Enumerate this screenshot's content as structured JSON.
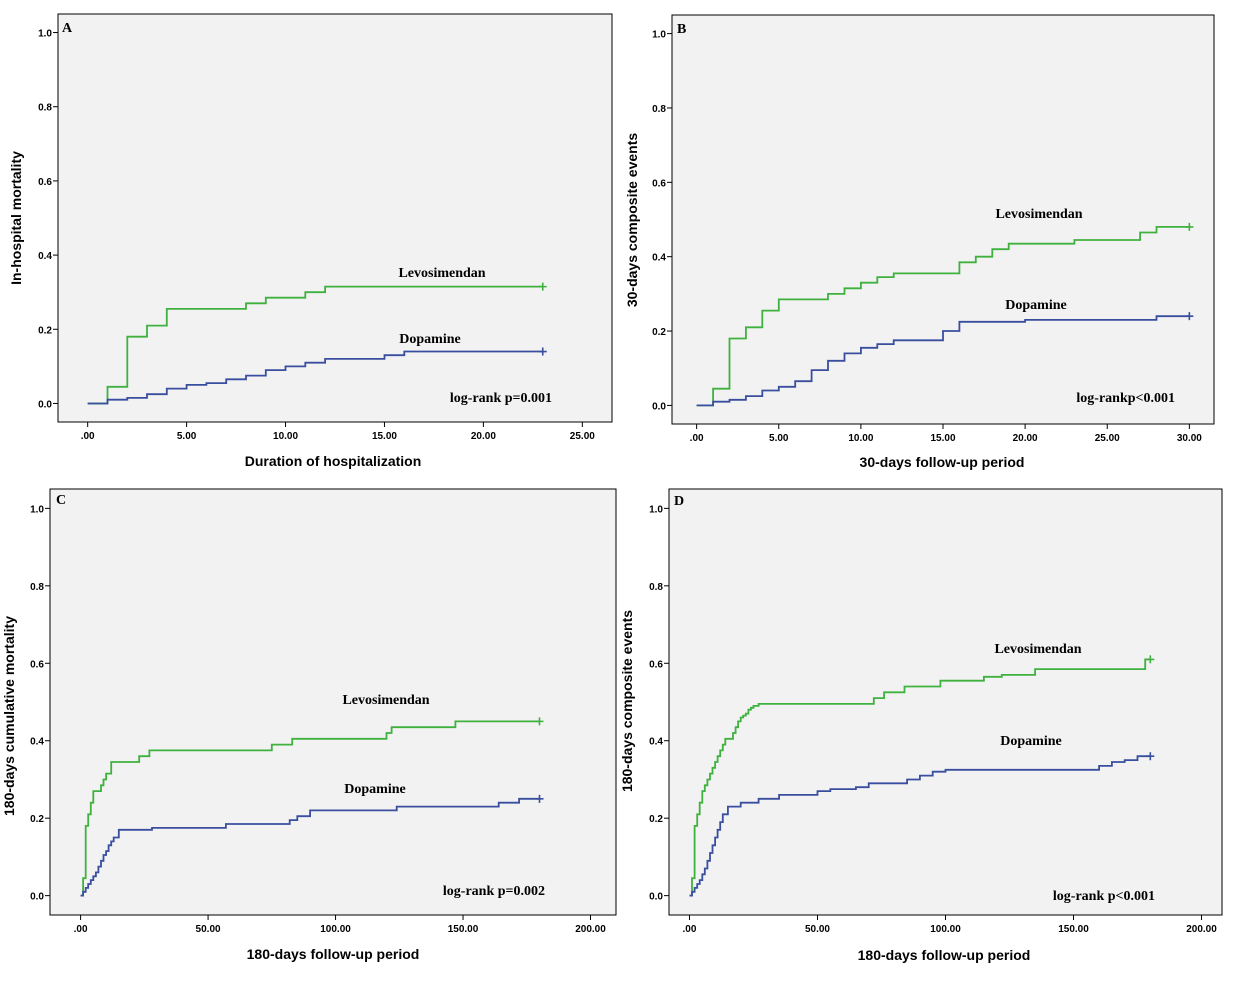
{
  "colors": {
    "Levosimendan": "#3fb13f",
    "Dopamine": "#3a4ea0"
  },
  "chart_data": [
    {
      "type": "line",
      "panel": "A",
      "xlabel": "Duration of hospitalization",
      "ylabel": "In-hospital mortality",
      "xlim": [
        -1.5,
        26.5
      ],
      "ylim": [
        -0.05,
        1.05
      ],
      "xticks": [
        0,
        5,
        10,
        15,
        20,
        25
      ],
      "xtick_labels": [
        ".00",
        "5.00",
        "10.00",
        "15.00",
        "20.00",
        "25.00"
      ],
      "yticks": [
        0,
        0.2,
        0.4,
        0.6,
        0.8,
        1.0
      ],
      "ytick_labels": [
        "0.0",
        "0.2",
        "0.4",
        "0.6",
        "0.8",
        "1.0"
      ],
      "annotation": "log-rank p=0.001",
      "series": [
        {
          "name": "Levosimendan",
          "label": "Levosimendan",
          "x": [
            0,
            1,
            2,
            3,
            4,
            8,
            9,
            11,
            12,
            23
          ],
          "y": [
            0,
            0.045,
            0.18,
            0.21,
            0.255,
            0.27,
            0.285,
            0.3,
            0.315,
            0.315
          ]
        },
        {
          "name": "Dopamine",
          "label": "Dopamine",
          "x": [
            0,
            1,
            2,
            3,
            4,
            5,
            6,
            7,
            8,
            9,
            10,
            11,
            12,
            15,
            16,
            23
          ],
          "y": [
            0,
            0.01,
            0.015,
            0.025,
            0.04,
            0.05,
            0.055,
            0.065,
            0.075,
            0.09,
            0.1,
            0.11,
            0.12,
            0.13,
            0.14,
            0.14
          ]
        }
      ]
    },
    {
      "type": "line",
      "panel": "B",
      "xlabel": "30-days follow-up period",
      "ylabel": "30-days composite events",
      "xlim": [
        -1.5,
        31.5
      ],
      "ylim": [
        -0.05,
        1.05
      ],
      "xticks": [
        0,
        5,
        10,
        15,
        20,
        25,
        30
      ],
      "xtick_labels": [
        ".00",
        "5.00",
        "10.00",
        "15.00",
        "20.00",
        "25.00",
        "30.00"
      ],
      "yticks": [
        0,
        0.2,
        0.4,
        0.6,
        0.8,
        1.0
      ],
      "ytick_labels": [
        "0.0",
        "0.2",
        "0.4",
        "0.6",
        "0.8",
        "1.0"
      ],
      "annotation": "log-rankp<0.001",
      "series": [
        {
          "name": "Levosimendan",
          "label": "Levosimendan",
          "x": [
            0,
            1,
            2,
            3,
            4,
            5,
            8,
            9,
            10,
            11,
            12,
            16,
            17,
            18,
            19,
            23,
            27,
            28,
            30
          ],
          "y": [
            0,
            0.045,
            0.18,
            0.21,
            0.255,
            0.285,
            0.3,
            0.315,
            0.33,
            0.345,
            0.355,
            0.385,
            0.4,
            0.42,
            0.435,
            0.445,
            0.465,
            0.48,
            0.48
          ]
        },
        {
          "name": "Dopamine",
          "label": "Dopamine",
          "x": [
            0,
            1,
            2,
            3,
            4,
            5,
            6,
            7,
            8,
            9,
            10,
            11,
            12,
            15,
            16,
            20,
            28,
            30
          ],
          "y": [
            0,
            0.01,
            0.015,
            0.025,
            0.04,
            0.05,
            0.065,
            0.095,
            0.12,
            0.14,
            0.155,
            0.165,
            0.175,
            0.2,
            0.225,
            0.23,
            0.24,
            0.24
          ]
        }
      ]
    },
    {
      "type": "line",
      "panel": "C",
      "xlabel": "180-days follow-up period",
      "ylabel": "180-days cumulative mortality",
      "xlim": [
        -12,
        210
      ],
      "ylim": [
        -0.05,
        1.05
      ],
      "xticks": [
        0,
        50,
        100,
        150,
        200
      ],
      "xtick_labels": [
        ".00",
        "50.00",
        "100.00",
        "150.00",
        "200.00"
      ],
      "yticks": [
        0,
        0.2,
        0.4,
        0.6,
        0.8,
        1.0
      ],
      "ytick_labels": [
        "0.0",
        "0.2",
        "0.4",
        "0.6",
        "0.8",
        "1.0"
      ],
      "annotation": "log-rank p=0.002",
      "series": [
        {
          "name": "Levosimendan",
          "label": "Levosimendan",
          "x": [
            0,
            1,
            2,
            3,
            4,
            5,
            6,
            8,
            9,
            10,
            12,
            23,
            27,
            75,
            83,
            120,
            122,
            147,
            180
          ],
          "y": [
            0,
            0.045,
            0.18,
            0.21,
            0.24,
            0.27,
            0.27,
            0.285,
            0.3,
            0.315,
            0.345,
            0.36,
            0.375,
            0.39,
            0.405,
            0.42,
            0.435,
            0.45,
            0.45
          ]
        },
        {
          "name": "Dopamine",
          "label": "Dopamine",
          "x": [
            0,
            1,
            2,
            3,
            4,
            5,
            6,
            7,
            8,
            9,
            10,
            11,
            12,
            13,
            15,
            28,
            57,
            82,
            85,
            90,
            124,
            164,
            172,
            180
          ],
          "y": [
            0,
            0.01,
            0.02,
            0.03,
            0.04,
            0.05,
            0.06,
            0.075,
            0.09,
            0.105,
            0.115,
            0.13,
            0.14,
            0.15,
            0.17,
            0.175,
            0.185,
            0.195,
            0.205,
            0.22,
            0.23,
            0.24,
            0.25,
            0.25
          ]
        }
      ]
    },
    {
      "type": "line",
      "panel": "D",
      "xlabel": "180-days follow-up period",
      "ylabel": "180-days composite events",
      "xlim": [
        -8,
        208
      ],
      "ylim": [
        -0.05,
        1.05
      ],
      "xticks": [
        0,
        50,
        100,
        150,
        200
      ],
      "xtick_labels": [
        ".00",
        "50.00",
        "100.00",
        "150.00",
        "200.00"
      ],
      "yticks": [
        0,
        0.2,
        0.4,
        0.6,
        0.8,
        1.0
      ],
      "ytick_labels": [
        "0.0",
        "0.2",
        "0.4",
        "0.6",
        "0.8",
        "1.0"
      ],
      "annotation": "log-rank p<0.001",
      "series": [
        {
          "name": "Levosimendan",
          "label": "Levosimendan",
          "x": [
            0,
            1,
            2,
            3,
            4,
            5,
            6,
            7,
            8,
            9,
            10,
            11,
            12,
            13,
            14,
            17,
            18,
            19,
            20,
            21,
            22,
            23,
            24,
            25,
            27,
            72,
            76,
            84,
            98,
            115,
            122,
            135,
            178,
            180
          ],
          "y": [
            0,
            0.045,
            0.18,
            0.21,
            0.24,
            0.27,
            0.285,
            0.3,
            0.315,
            0.33,
            0.345,
            0.36,
            0.375,
            0.39,
            0.405,
            0.42,
            0.435,
            0.45,
            0.46,
            0.465,
            0.47,
            0.48,
            0.485,
            0.49,
            0.495,
            0.51,
            0.525,
            0.54,
            0.555,
            0.565,
            0.57,
            0.585,
            0.61,
            0.61
          ]
        },
        {
          "name": "Dopamine",
          "label": "Dopamine",
          "x": [
            0,
            1,
            2,
            3,
            4,
            5,
            6,
            7,
            8,
            9,
            10,
            11,
            12,
            13,
            15,
            20,
            27,
            35,
            50,
            55,
            65,
            70,
            85,
            90,
            95,
            100,
            160,
            165,
            170,
            175,
            180
          ],
          "y": [
            0,
            0.01,
            0.02,
            0.03,
            0.04,
            0.055,
            0.07,
            0.09,
            0.11,
            0.13,
            0.15,
            0.17,
            0.19,
            0.21,
            0.23,
            0.24,
            0.25,
            0.26,
            0.27,
            0.275,
            0.28,
            0.29,
            0.3,
            0.31,
            0.32,
            0.325,
            0.335,
            0.345,
            0.35,
            0.36,
            0.36
          ]
        }
      ]
    }
  ]
}
